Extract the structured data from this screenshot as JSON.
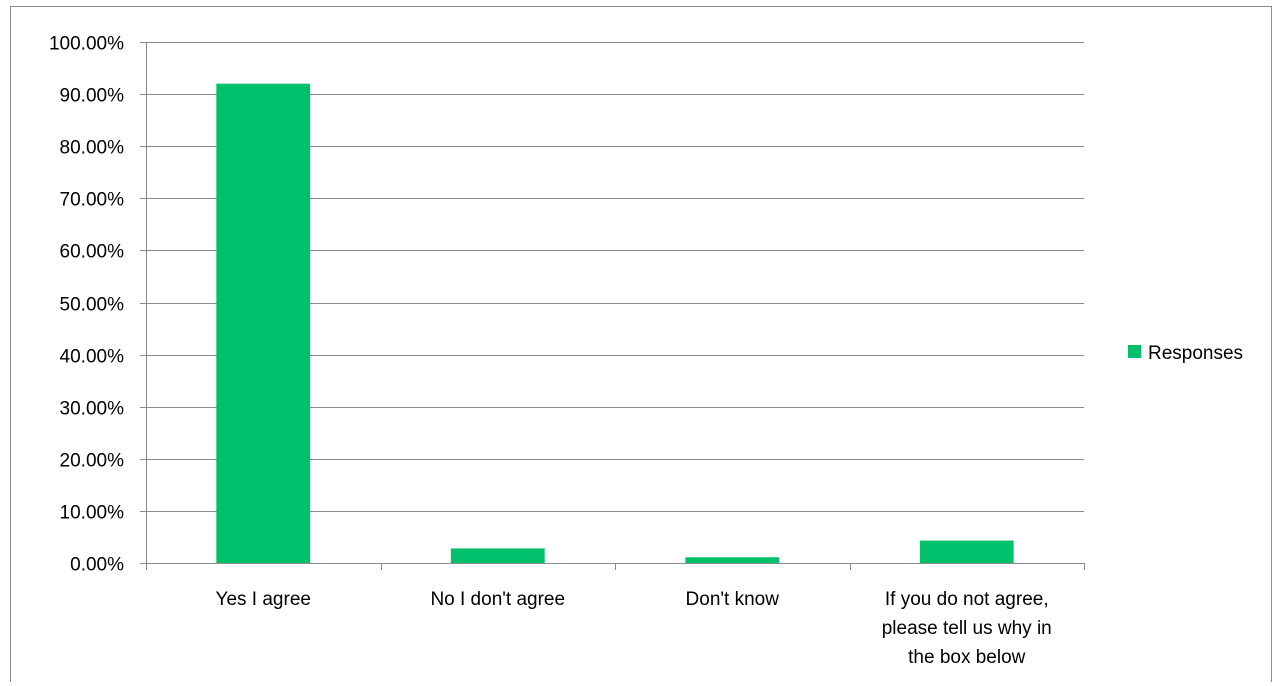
{
  "chart_data": {
    "type": "bar",
    "title": "",
    "xlabel": "",
    "ylabel": "",
    "categories": [
      [
        "Yes I agree"
      ],
      [
        "No I don't agree"
      ],
      [
        "Don't know"
      ],
      [
        "If you do not agree,",
        "please tell us why in",
        "the box below"
      ]
    ],
    "series": [
      {
        "name": "Responses",
        "color": "#00c06b",
        "values": [
          0.92,
          0.028,
          0.011,
          0.043
        ]
      }
    ],
    "ylim": [
      0,
      1
    ],
    "ytick_step": 0.1,
    "y_tick_format": "percent_2dp",
    "grid": true,
    "legend_position": "right"
  }
}
